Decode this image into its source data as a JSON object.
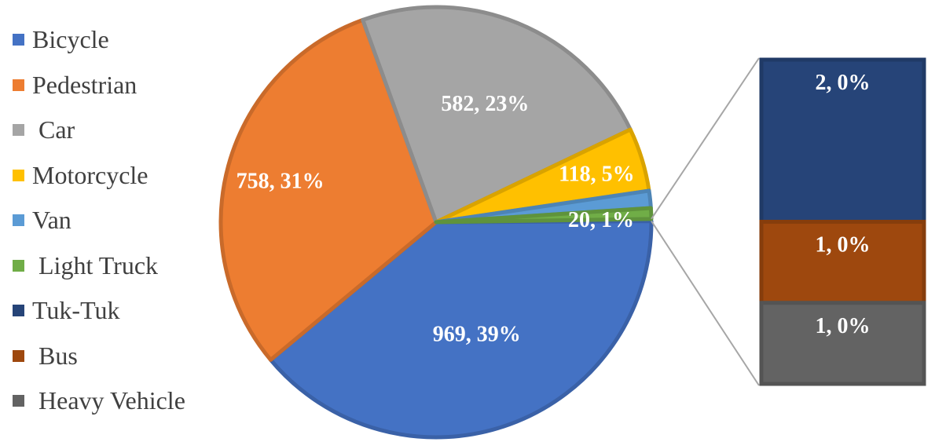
{
  "chart_data": {
    "type": "pie",
    "subtype": "bar-of-pie",
    "categories": [
      "Bicycle",
      "Pedestrian",
      "Car",
      "Motorcycle",
      "Van",
      "Light Truck",
      "Tuk-Tuk",
      "Bus",
      "Heavy Vehicle"
    ],
    "legend_labels": [
      "Bicycle",
      "Pedestrian",
      " Car",
      "Motorcycle",
      "Van",
      " Light Truck",
      "Tuk-Tuk",
      " Bus",
      " Heavy Vehicle"
    ],
    "values": [
      969,
      758,
      582,
      118,
      32,
      20,
      2,
      1,
      1
    ],
    "data_labels": [
      "969, 39%",
      "758, 31%",
      "582, 23%",
      "118, 5%",
      "",
      "20, 1%",
      "2, 0%",
      "1, 0%",
      "1, 0%"
    ],
    "colors": [
      "#4472C4",
      "#ED7D31",
      "#A5A5A5",
      "#FFC000",
      "#5B9BD5",
      "#70AD47",
      "#264478",
      "#9E480E",
      "#636363"
    ],
    "pie_categories": [
      "Bicycle",
      "Pedestrian",
      "Car",
      "Motorcycle",
      "Van",
      "Light Truck"
    ],
    "bar_categories": [
      "Tuk-Tuk",
      "Bus",
      "Heavy Vehicle"
    ],
    "legend_position": "left"
  }
}
